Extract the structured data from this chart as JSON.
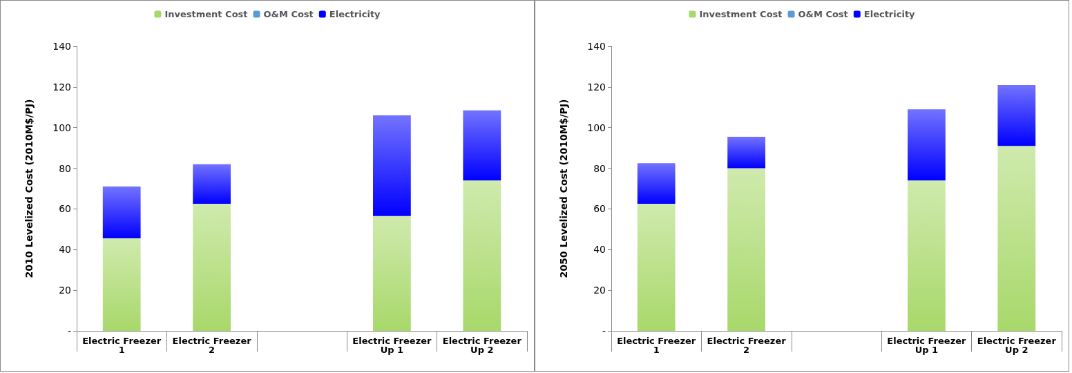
{
  "chart_data": [
    {
      "type": "bar",
      "stacked": true,
      "ylabel": "2010 Levelized Cost (2010M$/PJ)",
      "categories": [
        "Electric Freezer 1",
        "Electric Freezer 2",
        null,
        "Electric Freezer Up 1",
        "Electric Freezer Up 2"
      ],
      "ylim": [
        0,
        140
      ],
      "yticks": [
        {
          "value": 0,
          "label": "-"
        },
        20,
        40,
        60,
        80,
        100,
        120,
        140
      ],
      "grid": false,
      "legend": "top",
      "series": [
        {
          "name": "Investment Cost",
          "color": "#a8d86a",
          "values": [
            45.5,
            62.5,
            null,
            56.5,
            74
          ]
        },
        {
          "name": "O&M Cost",
          "color": "#5b9bd5",
          "values": [
            0,
            0,
            null,
            0,
            0
          ]
        },
        {
          "name": "Electricity",
          "color": "#0000ff",
          "values": [
            25.5,
            19.5,
            null,
            49.5,
            34.5
          ]
        }
      ]
    },
    {
      "type": "bar",
      "stacked": true,
      "ylabel": "2050 Levelized Cost (2010M$/PJ)",
      "categories": [
        "Electric Freezer 1",
        "Electric Freezer 2",
        null,
        "Electric Freezer Up 1",
        "Electric Freezer Up 2"
      ],
      "ylim": [
        0,
        140
      ],
      "yticks": [
        {
          "value": 0,
          "label": "-"
        },
        20,
        40,
        60,
        80,
        100,
        120,
        140
      ],
      "grid": false,
      "legend": "top",
      "series": [
        {
          "name": "Investment Cost",
          "color": "#a8d86a",
          "values": [
            62.5,
            80,
            null,
            74,
            91
          ]
        },
        {
          "name": "O&M Cost",
          "color": "#5b9bd5",
          "values": [
            0,
            0,
            null,
            0,
            0
          ]
        },
        {
          "name": "Electricity",
          "color": "#0000ff",
          "values": [
            20,
            15.5,
            null,
            35,
            30
          ]
        }
      ]
    }
  ]
}
